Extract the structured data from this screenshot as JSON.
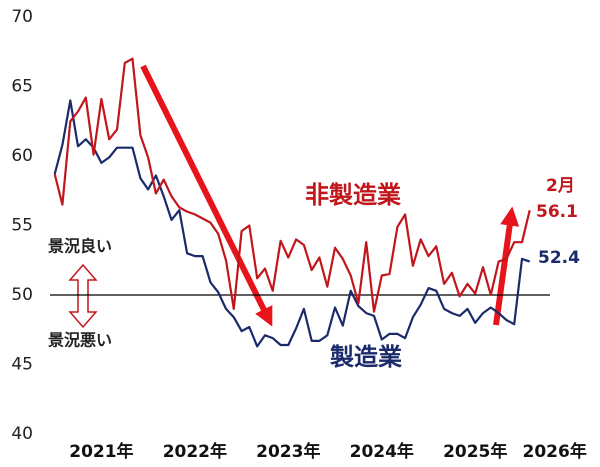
{
  "chart_data": {
    "type": "line",
    "x": [
      2021,
      2021.083,
      2021.167,
      2021.25,
      2021.333,
      2021.417,
      2021.5,
      2021.583,
      2021.667,
      2021.75,
      2021.833,
      2021.917,
      2022,
      2022.083,
      2022.167,
      2022.25,
      2022.333,
      2022.417,
      2022.5,
      2022.583,
      2022.667,
      2022.75,
      2022.833,
      2022.917,
      2023,
      2023.083,
      2023.167,
      2023.25,
      2023.333,
      2023.417,
      2023.5,
      2023.583,
      2023.667,
      2023.75,
      2023.833,
      2023.917,
      2024,
      2024.083,
      2024.167,
      2024.25,
      2024.333,
      2024.417,
      2024.5,
      2024.583,
      2024.667,
      2024.75,
      2024.833,
      2024.917,
      2025,
      2025.083,
      2025.167,
      2025.25,
      2025.333,
      2025.417,
      2025.5,
      2025.583,
      2025.667,
      2025.75,
      2025.833,
      2025.917,
      2026,
      2026.083
    ],
    "series": [
      {
        "name": "製造業",
        "color": "#1b2a6b",
        "values": [
          58.7,
          60.8,
          64.0,
          60.7,
          61.2,
          60.6,
          59.5,
          59.9,
          60.6,
          60.6,
          60.6,
          58.4,
          57.6,
          58.6,
          57.1,
          55.4,
          56.1,
          53.0,
          52.8,
          52.8,
          50.9,
          50.2,
          49.0,
          48.4,
          47.4,
          47.7,
          46.3,
          47.1,
          46.9,
          46.4,
          46.4,
          47.6,
          49.0,
          46.7,
          46.7,
          47.1,
          49.1,
          47.8,
          50.3,
          49.2,
          48.7,
          48.5,
          46.8,
          47.2,
          47.2,
          46.9,
          48.4,
          49.3,
          50.5,
          50.3,
          49.0,
          48.7,
          48.5,
          49.0,
          48.0,
          48.7,
          49.1,
          48.7,
          48.2,
          47.9,
          52.6,
          52.4
        ]
      },
      {
        "name": "非製造業",
        "color": "#c0161c",
        "values": [
          58.7,
          56.5,
          62.5,
          63.2,
          64.2,
          60.1,
          64.1,
          61.2,
          61.9,
          66.7,
          67.0,
          61.5,
          59.9,
          57.3,
          58.3,
          57.1,
          56.3,
          56.0,
          55.8,
          55.5,
          55.2,
          54.4,
          52.5,
          49.0,
          54.6,
          55.0,
          51.2,
          51.9,
          50.3,
          53.9,
          52.7,
          54.0,
          53.6,
          51.8,
          52.7,
          50.6,
          53.4,
          52.6,
          51.4,
          49.4,
          53.8,
          48.8,
          51.4,
          51.5,
          54.9,
          55.8,
          52.1,
          54.0,
          52.8,
          53.5,
          50.8,
          51.6,
          49.9,
          50.8,
          50.1,
          52.0,
          50.0,
          52.4,
          52.6,
          53.8,
          53.8,
          56.1
        ]
      }
    ],
    "xlim": [
      2020.95,
      2026.3
    ],
    "xticks": [
      {
        "value": 2021.5,
        "label": "2021年"
      },
      {
        "value": 2022.5,
        "label": "2022年"
      },
      {
        "value": 2023.5,
        "label": "2023年"
      },
      {
        "value": 2024.5,
        "label": "2024年"
      },
      {
        "value": 2025.5,
        "label": "2025年"
      },
      {
        "value": 2026.35,
        "label": "2026年"
      }
    ],
    "ylim": [
      40,
      70
    ],
    "yticks": [
      40,
      45,
      50,
      55,
      60,
      65,
      70
    ],
    "hline": 50,
    "annotations": {
      "good": "景況良い",
      "bad": "景況悪い",
      "month": "2月"
    }
  }
}
